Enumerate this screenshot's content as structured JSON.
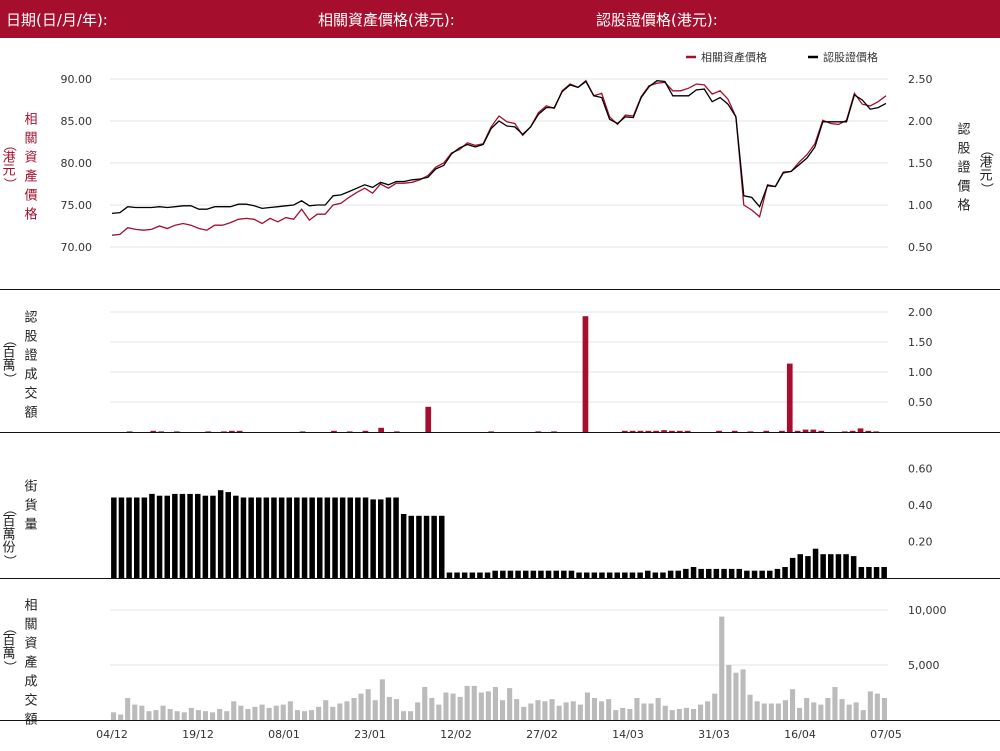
{
  "header": {
    "date_label": "日期(日/月/年):",
    "underlying_label": "相關資產價格(港元):",
    "warrant_label": "認股證價格(港元):"
  },
  "colors": {
    "brand": "#a50f2d",
    "underlying_line": "#a50f2d",
    "warrant_line": "#000000",
    "warrant_volume": "#a50f2d",
    "outstanding": "#000000",
    "underlying_turnover": "#bbbbbb"
  },
  "chart_data": [
    {
      "type": "line",
      "legend_position": "top-right",
      "legend": [
        "相關資產價格",
        "認股證價格"
      ],
      "ylabel": "相關資產價格（港元）",
      "y2label": "認股證價格（港元）",
      "ylim": [
        70,
        90
      ],
      "yticks": [
        "70.00",
        "75.00",
        "80.00",
        "85.00",
        "90.00"
      ],
      "y2lim": [
        0.5,
        2.5
      ],
      "y2ticks": [
        "0.50",
        "1.00",
        "1.50",
        "2.00",
        "2.50"
      ],
      "series": [
        {
          "name": "相關資產價格",
          "values": [
            71.4,
            71.5,
            72.3,
            72.1,
            72.0,
            72.1,
            72.5,
            72.2,
            72.6,
            72.8,
            72.6,
            72.2,
            72.0,
            72.6,
            72.6,
            72.9,
            73.3,
            73.4,
            73.3,
            72.8,
            73.4,
            73.0,
            73.5,
            73.3,
            74.5,
            73.2,
            73.9,
            73.9,
            75.0,
            75.2,
            75.9,
            76.5,
            77.0,
            76.4,
            77.5,
            77.0,
            77.6,
            77.6,
            77.7,
            78.0,
            78.5,
            79.5,
            80.0,
            81.2,
            81.6,
            82.4,
            82.1,
            82.3,
            84.3,
            85.6,
            84.9,
            84.7,
            83.3,
            84.3,
            86.0,
            86.8,
            86.5,
            88.6,
            89.4,
            89.0,
            89.8,
            88.0,
            88.3,
            85.5,
            84.6,
            85.7,
            85.6,
            87.9,
            89.2,
            89.5,
            89.6,
            88.6,
            88.6,
            88.9,
            89.4,
            89.3,
            88.2,
            88.6,
            87.6,
            85.5,
            75.0,
            74.4,
            73.6,
            77.4,
            77.2,
            78.8,
            79.0,
            80.1,
            81.0,
            82.3,
            85.1,
            84.7,
            84.6,
            85.1,
            88.3,
            87.0,
            86.8,
            87.3,
            88.0
          ]
        },
        {
          "name": "認股證價格",
          "values": [
            0.9,
            0.91,
            0.98,
            0.97,
            0.97,
            0.97,
            0.98,
            0.97,
            0.98,
            0.99,
            0.99,
            0.95,
            0.95,
            0.98,
            0.98,
            0.98,
            1.01,
            1.01,
            0.99,
            0.96,
            0.97,
            0.98,
            0.99,
            1.0,
            1.05,
            0.99,
            1.0,
            1.0,
            1.11,
            1.12,
            1.16,
            1.2,
            1.24,
            1.21,
            1.27,
            1.24,
            1.28,
            1.28,
            1.3,
            1.31,
            1.33,
            1.43,
            1.47,
            1.61,
            1.68,
            1.72,
            1.69,
            1.72,
            1.91,
            2.0,
            1.94,
            1.93,
            1.84,
            1.93,
            2.08,
            2.16,
            2.16,
            2.35,
            2.43,
            2.4,
            2.47,
            2.3,
            2.28,
            2.02,
            1.97,
            2.05,
            2.04,
            2.28,
            2.41,
            2.48,
            2.47,
            2.3,
            2.3,
            2.3,
            2.37,
            2.38,
            2.23,
            2.28,
            2.2,
            2.05,
            1.11,
            1.09,
            0.98,
            1.23,
            1.22,
            1.39,
            1.4,
            1.48,
            1.56,
            1.69,
            1.99,
            1.99,
            1.99,
            1.99,
            2.31,
            2.25,
            2.14,
            2.16,
            2.21
          ]
        }
      ]
    },
    {
      "type": "bar",
      "ylabel": "認股證成交額（百萬）",
      "ylim": [
        0,
        2.2
      ],
      "yticks": [
        "0.50",
        "1.00",
        "1.50",
        "2.00"
      ],
      "values": [
        0,
        0,
        0.01,
        0,
        0,
        0.02,
        0.01,
        0,
        0.01,
        0,
        0,
        0,
        0.01,
        0,
        0.01,
        0.02,
        0.02,
        0,
        0,
        0,
        0,
        0,
        0,
        0,
        0.01,
        0,
        0,
        0,
        0.02,
        0,
        0.01,
        0,
        0.02,
        0,
        0.07,
        0,
        0.01,
        0,
        0,
        0,
        0.42,
        0,
        0,
        0,
        0,
        0,
        0,
        0,
        0.01,
        0,
        0,
        0,
        0,
        0,
        0.01,
        0,
        0.01,
        0,
        0,
        0,
        1.93,
        0,
        0,
        0,
        0,
        0.02,
        0.02,
        0.02,
        0.02,
        0.02,
        0.03,
        0.02,
        0.02,
        0.02,
        0,
        0,
        0,
        0.02,
        0,
        0.02,
        0,
        0.01,
        0,
        0.02,
        0,
        0.02,
        1.14,
        0.02,
        0.04,
        0.04,
        0.02,
        0,
        0,
        0.01,
        0.02,
        0.06,
        0.02,
        0.01,
        0
      ]
    },
    {
      "type": "bar",
      "ylabel": "街貨量（百萬份）",
      "ylim": [
        0,
        0.7
      ],
      "yticks": [
        "0.20",
        "0.40",
        "0.60"
      ],
      "values": [
        0.44,
        0.44,
        0.44,
        0.44,
        0.44,
        0.46,
        0.45,
        0.45,
        0.46,
        0.46,
        0.46,
        0.46,
        0.45,
        0.45,
        0.48,
        0.47,
        0.45,
        0.44,
        0.44,
        0.44,
        0.44,
        0.44,
        0.44,
        0.44,
        0.44,
        0.44,
        0.44,
        0.44,
        0.44,
        0.44,
        0.44,
        0.44,
        0.44,
        0.44,
        0.43,
        0.43,
        0.44,
        0.44,
        0.35,
        0.34,
        0.34,
        0.34,
        0.34,
        0.34,
        0.03,
        0.03,
        0.03,
        0.03,
        0.03,
        0.03,
        0.04,
        0.04,
        0.04,
        0.04,
        0.04,
        0.04,
        0.04,
        0.04,
        0.04,
        0.04,
        0.04,
        0.03,
        0.03,
        0.03,
        0.03,
        0.03,
        0.03,
        0.03,
        0.03,
        0.03,
        0.04,
        0.03,
        0.03,
        0.04,
        0.04,
        0.05,
        0.06,
        0.05,
        0.05,
        0.05,
        0.05,
        0.05,
        0.05,
        0.04,
        0.04,
        0.04,
        0.04,
        0.05,
        0.06,
        0.11,
        0.13,
        0.12,
        0.16,
        0.13,
        0.13,
        0.13,
        0.13,
        0.12,
        0.06,
        0.06,
        0.06,
        0.06
      ]
    },
    {
      "type": "bar",
      "ylabel": "相關資產成交額（百萬）",
      "ylim": [
        0,
        11000
      ],
      "yticks": [
        "5,000",
        "10,000"
      ],
      "xticks": [
        "04/12",
        "19/12",
        "08/01",
        "23/01",
        "12/02",
        "27/02",
        "14/03",
        "31/03",
        "16/04",
        "07/05"
      ],
      "values": [
        700,
        500,
        2000,
        1400,
        1300,
        800,
        900,
        1300,
        1000,
        800,
        700,
        1100,
        900,
        800,
        700,
        1000,
        800,
        1700,
        1300,
        1000,
        1200,
        1400,
        1100,
        1300,
        1400,
        1700,
        900,
        800,
        900,
        1200,
        1800,
        1200,
        1500,
        1700,
        2000,
        2400,
        2800,
        1800,
        3700,
        2100,
        1900,
        800,
        800,
        1600,
        3000,
        2000,
        1400,
        2500,
        2400,
        2100,
        3100,
        3100,
        2500,
        2600,
        3000,
        1800,
        2900,
        1900,
        1200,
        1500,
        1800,
        1700,
        1900,
        1300,
        1600,
        1700,
        1400,
        2500,
        2000,
        1700,
        1900,
        900,
        1100,
        1000,
        2000,
        1500,
        1500,
        2000,
        1300,
        900,
        1000,
        1100,
        1000,
        1400,
        1700,
        2400,
        9400,
        5000,
        4300,
        4600,
        2300,
        1700,
        1500,
        1500,
        1500,
        1800,
        2800,
        1100,
        2000,
        1600,
        1400,
        2000,
        3000,
        1900,
        1400,
        1600,
        900,
        2600,
        2400,
        2000
      ]
    }
  ]
}
